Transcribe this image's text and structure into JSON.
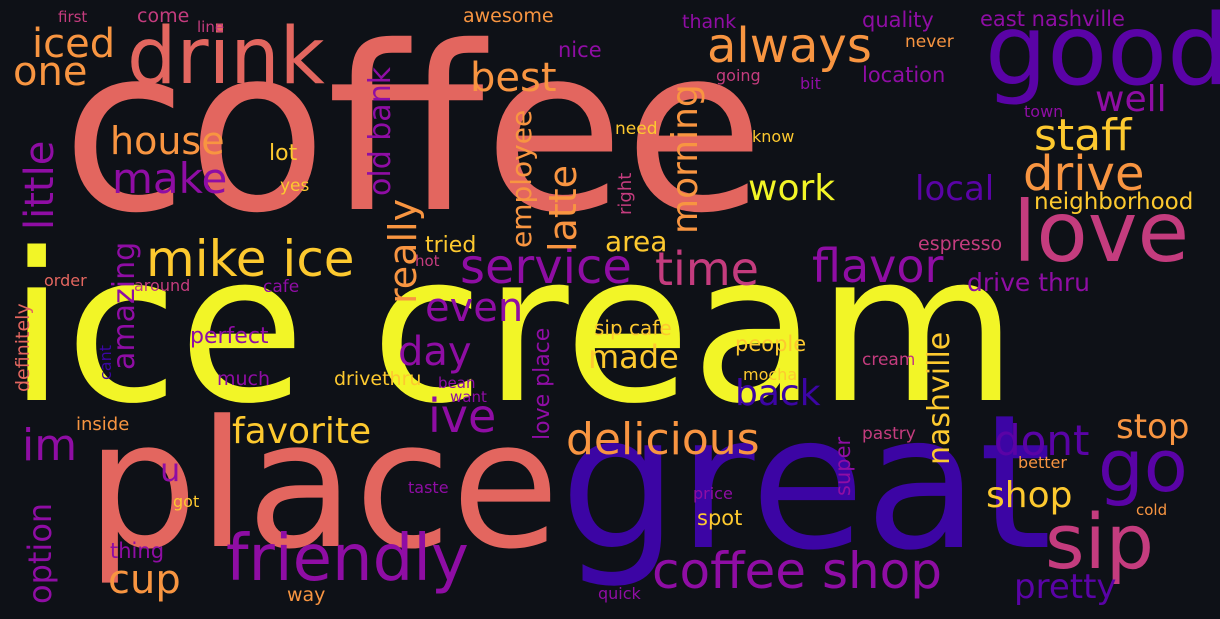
{
  "words": {
    "coffee": "coffee",
    "ice_cream": "ice cream",
    "place": "place",
    "great": "great",
    "drink": "drink",
    "good": "good",
    "love": "love",
    "sip": "sip",
    "friendly": "friendly",
    "coffee_shop": "coffee shop",
    "service": "service",
    "time": "time",
    "flavor": "flavor",
    "mike_ice": "mike ice",
    "always": "always",
    "iced": "iced",
    "one": "one",
    "best": "best",
    "staff": "staff",
    "drive": "drive",
    "well": "well",
    "house": "house",
    "make": "make",
    "lot": "lot",
    "yes": "yes",
    "work": "work",
    "local": "local",
    "neighborhood": "neighborhood",
    "area": "area",
    "tried": "tried",
    "hot": "hot",
    "espresso": "espresso",
    "drive_thru": "drive thru",
    "even": "even",
    "day": "day",
    "made": "made",
    "back": "back",
    "favorite": "favorite",
    "ive": "ive",
    "delicious": "delicious",
    "dont": "dont",
    "stop": "stop",
    "go": "go",
    "shop": "shop",
    "im": "im",
    "u": "u",
    "cup": "cup",
    "pretty": "pretty",
    "perfect": "perfect",
    "much": "much",
    "drivethru": "drivethru",
    "people": "people",
    "mocha": "mocha",
    "sip_cafe": "sip cafe",
    "cream": "cream",
    "pastry": "pastry",
    "better": "better",
    "cold": "cold",
    "spot": "spot",
    "price": "price",
    "taste": "taste",
    "got": "got",
    "thing": "thing",
    "way": "way",
    "quick": "quick",
    "inside": "inside",
    "bean": "bean",
    "want": "want",
    "cafe": "cafe",
    "around": "around",
    "order": "order",
    "first": "first",
    "come": "come",
    "line": "line",
    "awesome": "awesome",
    "thank": "thank",
    "quality": "quality",
    "east_nashville": "east nashville",
    "nice": "nice",
    "never": "never",
    "going": "going",
    "bit": "bit",
    "location": "location",
    "town": "town",
    "need": "need",
    "know": "know",
    "right": "right",
    "little": "little",
    "old_bank": "old bank",
    "really": "really",
    "amazing": "amazing",
    "employee": "employee",
    "latte": "latte",
    "morning": "morning",
    "nashville": "nashville",
    "love_place": "love place",
    "super": "super",
    "definitely": "definitely",
    "cant": "cant",
    "option": "option"
  },
  "colors": {
    "background": "#0e1117",
    "yellow": "#f2f527",
    "salmon": "#e3665f",
    "orange": "#f89541",
    "light_orange": "#fdc92f",
    "purple": "#8f0da4",
    "magenta": "#c43c7e",
    "indigo": "#3c05a4",
    "indigo_purple": "#5a03a6"
  }
}
